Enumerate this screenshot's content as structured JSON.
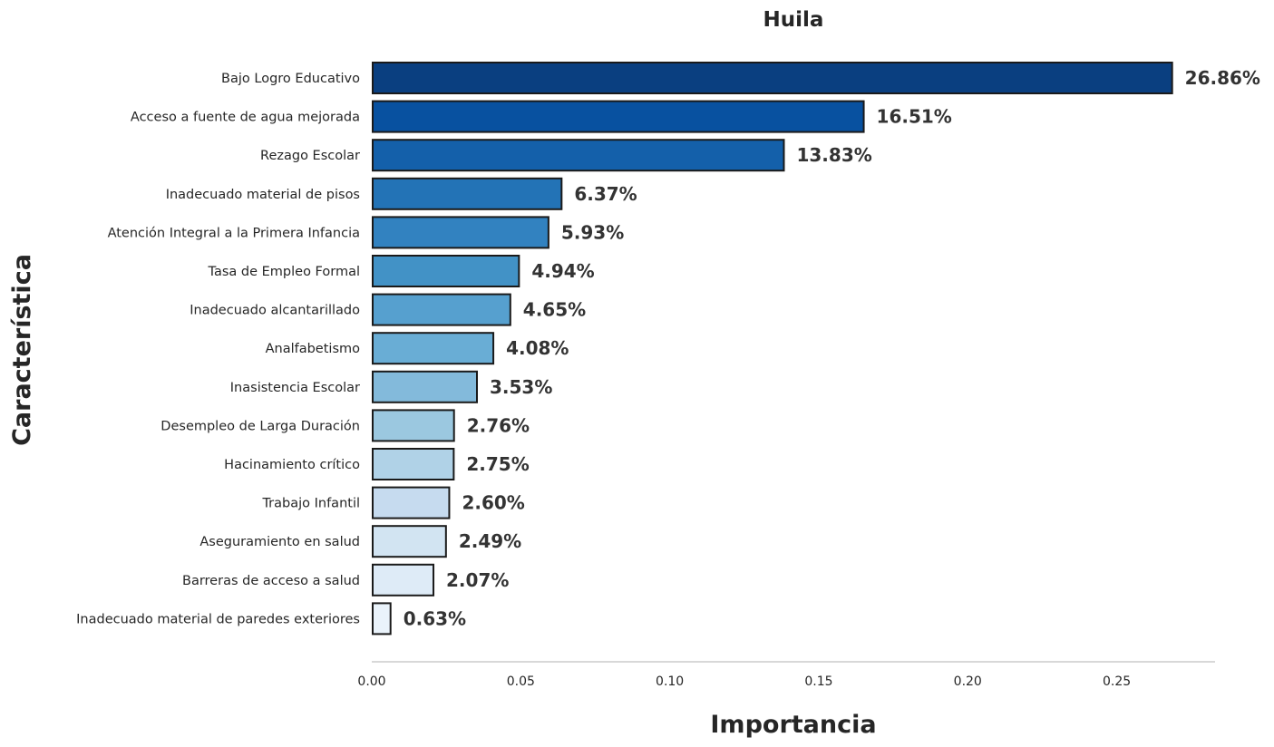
{
  "chart_data": {
    "type": "bar",
    "orientation": "horizontal",
    "title": "Huila",
    "xlabel": "Importancia",
    "ylabel": "Característica",
    "xlim": [
      0,
      0.283
    ],
    "x_ticks": [
      0.0,
      0.05,
      0.1,
      0.15,
      0.2,
      0.25
    ],
    "x_tick_labels": [
      "0.00",
      "0.05",
      "0.10",
      "0.15",
      "0.20",
      "0.25"
    ],
    "grid": false,
    "categories": [
      "Bajo Logro Educativo",
      "Acceso a fuente de agua mejorada",
      "Rezago Escolar",
      "Inadecuado material de pisos",
      "Atención Integral a la Primera Infancia",
      "Tasa de Empleo Formal",
      "Inadecuado alcantarillado",
      "Analfabetismo",
      "Inasistencia Escolar",
      "Desempleo de Larga Duración",
      "Hacinamiento crítico",
      "Trabajo Infantil",
      "Aseguramiento en salud",
      "Barreras de acceso a salud",
      "Inadecuado material de paredes exteriores"
    ],
    "values": [
      0.2686,
      0.1651,
      0.1383,
      0.0637,
      0.0593,
      0.0494,
      0.0465,
      0.0408,
      0.0353,
      0.0276,
      0.0275,
      0.026,
      0.0249,
      0.0207,
      0.0063
    ],
    "data_labels": [
      "26.86%",
      "16.51%",
      "13.83%",
      "6.37%",
      "5.93%",
      "4.94%",
      "4.65%",
      "4.08%",
      "3.53%",
      "2.76%",
      "2.75%",
      "2.60%",
      "2.49%",
      "2.07%",
      "0.63%"
    ],
    "colors": [
      "#0a3f80",
      "#0851a0",
      "#1460aa",
      "#2373b6",
      "#3282c0",
      "#4292c6",
      "#56a0cf",
      "#69add5",
      "#83badb",
      "#9bc8e0",
      "#b0d2e7",
      "#c6dbef",
      "#d2e4f2",
      "#deebf7",
      "#eaf3fb"
    ],
    "bar_edge_color": "#1a1a1a",
    "axis_color": "#cccccc",
    "text_color": "#262626"
  }
}
